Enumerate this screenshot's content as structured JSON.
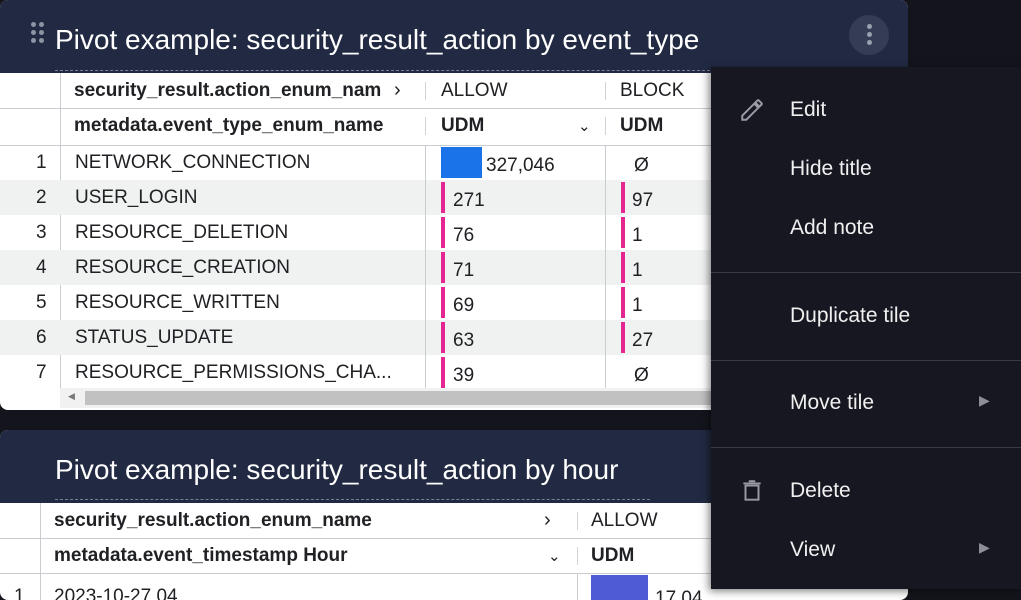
{
  "tile1": {
    "title": "Pivot example: security_result_action by event_type",
    "pivot_header": "security_result.action_enum_name",
    "row_header": "metadata.event_type_enum_name",
    "columns": [
      {
        "label": "ALLOW",
        "sub": "UDM"
      },
      {
        "label": "BLOCK",
        "sub": "UDM"
      }
    ],
    "rows": [
      {
        "index": "1",
        "name": "NETWORK_CONNECTION",
        "allow": "327,046",
        "block": "Ø"
      },
      {
        "index": "2",
        "name": "USER_LOGIN",
        "allow": "271",
        "block": "97"
      },
      {
        "index": "3",
        "name": "RESOURCE_DELETION",
        "allow": "76",
        "block": "1"
      },
      {
        "index": "4",
        "name": "RESOURCE_CREATION",
        "allow": "71",
        "block": "1"
      },
      {
        "index": "5",
        "name": "RESOURCE_WRITTEN",
        "allow": "69",
        "block": "1"
      },
      {
        "index": "6",
        "name": "STATUS_UPDATE",
        "allow": "63",
        "block": "27"
      },
      {
        "index": "7",
        "name": "RESOURCE_PERMISSIONS_CHA...",
        "allow": "39",
        "block": "Ø"
      }
    ],
    "bar_colors": {
      "max": "#1a73e8",
      "other": "#e52592"
    }
  },
  "tile2": {
    "title": "Pivot example: security_result_action by hour",
    "pivot_header": "security_result.action_enum_name",
    "row_header": "metadata.event_timestamp Hour",
    "columns": [
      {
        "label": "ALLOW",
        "sub": "UDM"
      }
    ],
    "rows": [
      {
        "index": "1",
        "name": "2023-10-27 04",
        "allow": "17,04"
      }
    ],
    "bar_color": "#4f5bd5"
  },
  "menu": {
    "items": [
      {
        "label": "Edit",
        "icon": "pencil-icon"
      },
      {
        "label": "Hide title"
      },
      {
        "label": "Add note"
      },
      {
        "label": "Duplicate tile"
      },
      {
        "label": "Move tile",
        "submenu": true
      },
      {
        "label": "Delete",
        "icon": "trash-icon"
      },
      {
        "label": "View",
        "submenu": true
      }
    ]
  }
}
